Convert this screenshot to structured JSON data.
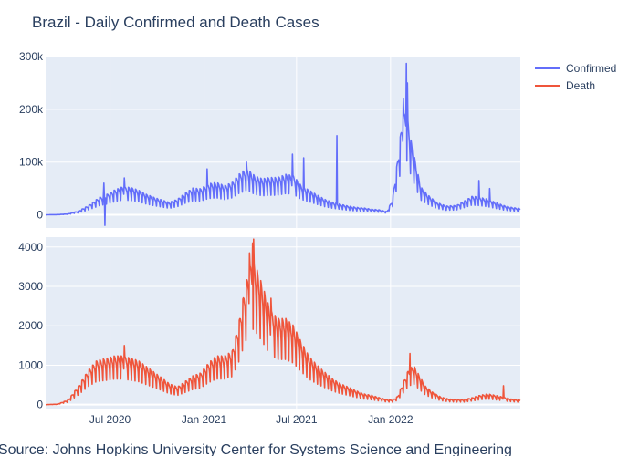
{
  "chart_data": {
    "type": "line",
    "title": "Brazil - Daily Confirmed and Death Cases",
    "source": "Source: Johns Hopkins University Center for Systems Science and Engineering",
    "x_range": [
      "2020-02-26",
      "2022-09-12"
    ],
    "x_ticks": [
      {
        "date": "2020-07-01",
        "label": "Jul 2020"
      },
      {
        "date": "2021-01-01",
        "label": "Jan 2021"
      },
      {
        "date": "2021-07-01",
        "label": "Jul 2021"
      },
      {
        "date": "2022-01-01",
        "label": "Jan 2022"
      }
    ],
    "colors": {
      "confirmed": "#636efa",
      "death": "#ef553b",
      "plot_bg": "#e5ecf6",
      "grid": "#ffffff",
      "text": "#2a3f5f"
    },
    "legend": {
      "position": "top-right",
      "items": [
        "Confirmed",
        "Death"
      ]
    },
    "panels": [
      {
        "series": "Confirmed",
        "ylim": [
          -25000,
          300000
        ],
        "y_ticks": [
          {
            "value": 0,
            "label": "0"
          },
          {
            "value": 100000,
            "label": "100k"
          },
          {
            "value": 200000,
            "label": "200k"
          },
          {
            "value": 300000,
            "label": "300k"
          }
        ],
        "anchors": [
          [
            "2020-02-26",
            0
          ],
          [
            "2020-03-20",
            300
          ],
          [
            "2020-04-10",
            1500
          ],
          [
            "2020-04-30",
            6000
          ],
          [
            "2020-05-20",
            15000
          ],
          [
            "2020-06-10",
            28000
          ],
          [
            "2020-06-25",
            33000
          ],
          [
            "2020-07-10",
            40000
          ],
          [
            "2020-07-25",
            45000
          ],
          [
            "2020-08-10",
            44000
          ],
          [
            "2020-08-25",
            40000
          ],
          [
            "2020-09-10",
            33000
          ],
          [
            "2020-09-25",
            28000
          ],
          [
            "2020-10-10",
            24000
          ],
          [
            "2020-10-25",
            20000
          ],
          [
            "2020-11-10",
            25000
          ],
          [
            "2020-11-25",
            35000
          ],
          [
            "2020-12-10",
            43000
          ],
          [
            "2020-12-25",
            42000
          ],
          [
            "2021-01-10",
            50000
          ],
          [
            "2021-01-25",
            52000
          ],
          [
            "2021-02-10",
            47000
          ],
          [
            "2021-02-25",
            52000
          ],
          [
            "2021-03-10",
            65000
          ],
          [
            "2021-03-25",
            75000
          ],
          [
            "2021-04-10",
            63000
          ],
          [
            "2021-04-25",
            58000
          ],
          [
            "2021-05-10",
            60000
          ],
          [
            "2021-05-25",
            60000
          ],
          [
            "2021-06-10",
            65000
          ],
          [
            "2021-06-25",
            63000
          ],
          [
            "2021-07-10",
            47000
          ],
          [
            "2021-07-25",
            40000
          ],
          [
            "2021-08-10",
            32000
          ],
          [
            "2021-08-25",
            25000
          ],
          [
            "2021-09-10",
            20000
          ],
          [
            "2021-09-25",
            17000
          ],
          [
            "2021-10-10",
            14000
          ],
          [
            "2021-10-25",
            12000
          ],
          [
            "2021-11-10",
            11000
          ],
          [
            "2021-11-25",
            9000
          ],
          [
            "2021-12-10",
            8000
          ],
          [
            "2021-12-25",
            5000
          ],
          [
            "2022-01-05",
            25000
          ],
          [
            "2022-01-15",
            90000
          ],
          [
            "2022-01-25",
            160000
          ],
          [
            "2022-02-01",
            170000
          ],
          [
            "2022-02-10",
            120000
          ],
          [
            "2022-02-20",
            80000
          ],
          [
            "2022-03-01",
            45000
          ],
          [
            "2022-03-15",
            32000
          ],
          [
            "2022-04-01",
            20000
          ],
          [
            "2022-04-20",
            14000
          ],
          [
            "2022-05-10",
            15000
          ],
          [
            "2022-05-25",
            22000
          ],
          [
            "2022-06-10",
            30000
          ],
          [
            "2022-06-25",
            28000
          ],
          [
            "2022-07-10",
            25000
          ],
          [
            "2022-07-25",
            20000
          ],
          [
            "2022-08-10",
            15000
          ],
          [
            "2022-08-25",
            12000
          ],
          [
            "2022-09-12",
            10000
          ]
        ],
        "spikes": [
          [
            "2020-06-19",
            60000
          ],
          [
            "2020-06-21",
            -20000
          ],
          [
            "2020-07-29",
            70000
          ],
          [
            "2021-01-07",
            87000
          ],
          [
            "2021-03-25",
            100000
          ],
          [
            "2021-06-23",
            115000
          ],
          [
            "2021-07-15",
            108000
          ],
          [
            "2021-09-18",
            150000
          ],
          [
            "2022-01-26",
            220000
          ],
          [
            "2022-02-01",
            287000
          ],
          [
            "2022-02-03",
            250000
          ],
          [
            "2022-06-23",
            65000
          ],
          [
            "2022-07-14",
            50000
          ]
        ]
      },
      {
        "series": "Death",
        "ylim": [
          -100,
          4250
        ],
        "y_ticks": [
          {
            "value": 0,
            "label": "0"
          },
          {
            "value": 1000,
            "label": "1000"
          },
          {
            "value": 2000,
            "label": "2000"
          },
          {
            "value": 3000,
            "label": "3000"
          },
          {
            "value": 4000,
            "label": "4000"
          }
        ],
        "anchors": [
          [
            "2020-02-26",
            0
          ],
          [
            "2020-03-20",
            10
          ],
          [
            "2020-04-10",
            100
          ],
          [
            "2020-04-30",
            400
          ],
          [
            "2020-05-20",
            750
          ],
          [
            "2020-06-05",
            950
          ],
          [
            "2020-06-25",
            1000
          ],
          [
            "2020-07-10",
            1050
          ],
          [
            "2020-07-25",
            1050
          ],
          [
            "2020-08-10",
            1000
          ],
          [
            "2020-08-25",
            950
          ],
          [
            "2020-09-10",
            820
          ],
          [
            "2020-09-25",
            700
          ],
          [
            "2020-10-10",
            580
          ],
          [
            "2020-10-25",
            450
          ],
          [
            "2020-11-10",
            380
          ],
          [
            "2020-11-25",
            500
          ],
          [
            "2020-12-10",
            620
          ],
          [
            "2020-12-25",
            680
          ],
          [
            "2021-01-10",
            900
          ],
          [
            "2021-01-25",
            1050
          ],
          [
            "2021-02-10",
            1050
          ],
          [
            "2021-02-25",
            1150
          ],
          [
            "2021-03-10",
            1750
          ],
          [
            "2021-03-20",
            2400
          ],
          [
            "2021-03-30",
            2950
          ],
          [
            "2021-04-08",
            3100
          ],
          [
            "2021-04-18",
            2800
          ],
          [
            "2021-04-30",
            2400
          ],
          [
            "2021-05-10",
            2050
          ],
          [
            "2021-05-25",
            1850
          ],
          [
            "2021-06-10",
            1850
          ],
          [
            "2021-06-25",
            1700
          ],
          [
            "2021-07-10",
            1350
          ],
          [
            "2021-07-25",
            1050
          ],
          [
            "2021-08-10",
            850
          ],
          [
            "2021-08-25",
            700
          ],
          [
            "2021-09-10",
            550
          ],
          [
            "2021-09-25",
            450
          ],
          [
            "2021-10-10",
            380
          ],
          [
            "2021-10-25",
            300
          ],
          [
            "2021-11-10",
            230
          ],
          [
            "2021-11-25",
            200
          ],
          [
            "2021-12-10",
            150
          ],
          [
            "2021-12-25",
            110
          ],
          [
            "2022-01-05",
            100
          ],
          [
            "2022-01-15",
            180
          ],
          [
            "2022-01-25",
            450
          ],
          [
            "2022-02-05",
            750
          ],
          [
            "2022-02-15",
            850
          ],
          [
            "2022-02-25",
            650
          ],
          [
            "2022-03-10",
            400
          ],
          [
            "2022-03-25",
            260
          ],
          [
            "2022-04-10",
            160
          ],
          [
            "2022-04-25",
            120
          ],
          [
            "2022-05-10",
            110
          ],
          [
            "2022-05-25",
            110
          ],
          [
            "2022-06-10",
            150
          ],
          [
            "2022-06-25",
            200
          ],
          [
            "2022-07-10",
            230
          ],
          [
            "2022-07-25",
            200
          ],
          [
            "2022-08-10",
            160
          ],
          [
            "2022-08-25",
            120
          ],
          [
            "2022-09-12",
            100
          ]
        ],
        "spikes": [
          [
            "2020-07-29",
            1500
          ],
          [
            "2021-04-06",
            4100
          ],
          [
            "2021-04-08",
            4200
          ],
          [
            "2021-03-31",
            3850
          ],
          [
            "2021-05-12",
            2700
          ],
          [
            "2022-02-08",
            1300
          ],
          [
            "2022-08-10",
            480
          ]
        ]
      }
    ]
  }
}
